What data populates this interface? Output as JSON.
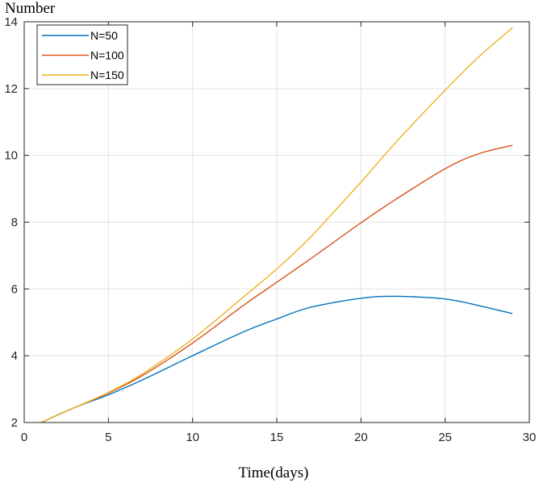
{
  "chart_data": {
    "type": "line",
    "title": "",
    "ylabel": "Number",
    "xlabel": "Time(days)",
    "xlim": [
      0,
      30
    ],
    "ylim": [
      2,
      14
    ],
    "xticks": [
      0,
      5,
      10,
      15,
      20,
      25,
      30
    ],
    "yticks": [
      2,
      4,
      6,
      8,
      10,
      12,
      14
    ],
    "xtick_labels": [
      "0",
      "5",
      "10",
      "15",
      "20",
      "25",
      "30"
    ],
    "ytick_labels": [
      "2",
      "4",
      "6",
      "8",
      "10",
      "12",
      "14"
    ],
    "grid": true,
    "legend_position": "top-left",
    "x": [
      1,
      3,
      5,
      7,
      10,
      13,
      15,
      17,
      20,
      22,
      25,
      27,
      29
    ],
    "series": [
      {
        "name": "N=50",
        "color": "#0072bd",
        "values": [
          2.0,
          2.45,
          2.83,
          3.27,
          4.0,
          4.71,
          5.1,
          5.45,
          5.72,
          5.78,
          5.7,
          5.5,
          5.26
        ]
      },
      {
        "name": "N=100",
        "color": "#d95319",
        "values": [
          2.0,
          2.45,
          2.88,
          3.4,
          4.38,
          5.5,
          6.2,
          6.9,
          7.98,
          8.66,
          9.6,
          10.05,
          10.3
        ]
      },
      {
        "name": "N=150",
        "color": "#edb120",
        "values": [
          2.0,
          2.45,
          2.9,
          3.45,
          4.5,
          5.75,
          6.6,
          7.55,
          9.2,
          10.35,
          11.95,
          12.95,
          13.82
        ]
      }
    ]
  }
}
